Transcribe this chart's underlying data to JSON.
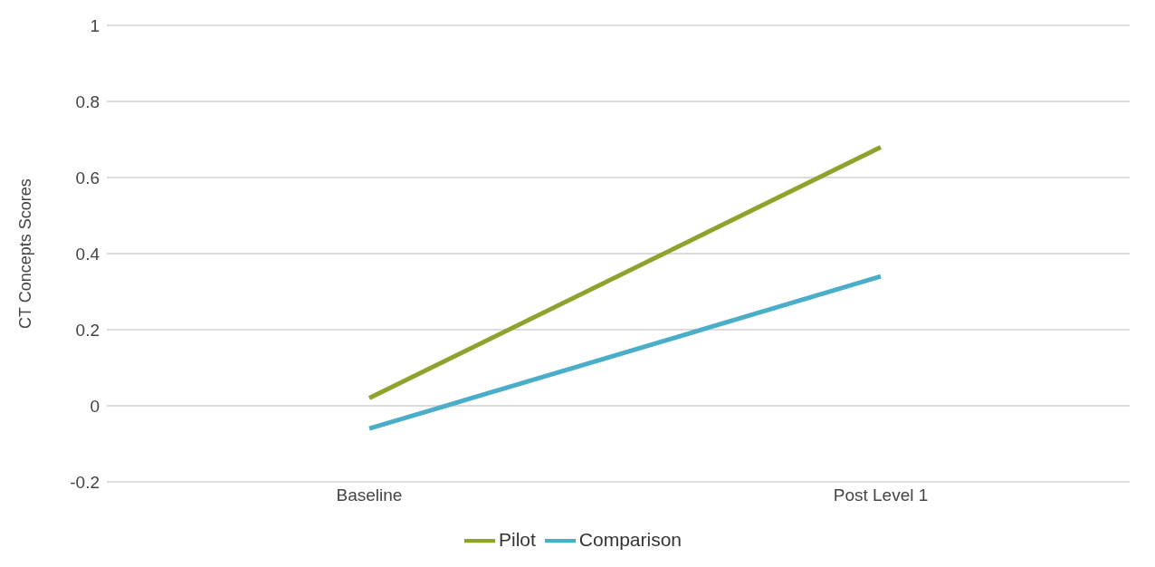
{
  "chart_data": {
    "type": "line",
    "ylabel": "CT Concepts Scores",
    "categories": [
      "Baseline",
      "Post Level 1"
    ],
    "series": [
      {
        "name": "Pilot",
        "color": "#8ea32b",
        "values": [
          0.02,
          0.68
        ]
      },
      {
        "name": "Comparison",
        "color": "#4aaec9",
        "values": [
          -0.06,
          0.34
        ]
      }
    ],
    "ylim": [
      -0.2,
      1
    ],
    "yticks": [
      -0.2,
      0,
      0.2,
      0.4,
      0.6,
      0.8,
      1
    ],
    "grid": "y",
    "legend": "bottom",
    "marker": "none",
    "line_style": "solid"
  }
}
